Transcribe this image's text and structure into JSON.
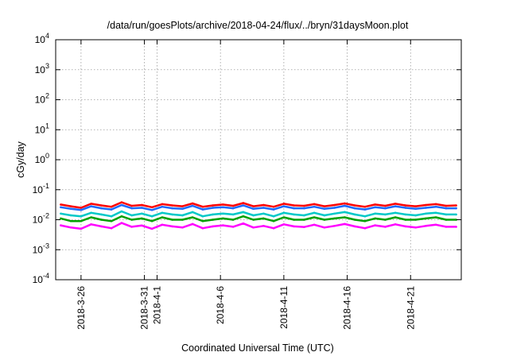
{
  "chart_data": {
    "type": "line",
    "title": "/data/run/goesPlots/archive/2018-04-24/flux/../bryn/31daysMoon.plot",
    "xlabel": "Coordinated Universal Time (UTC)",
    "ylabel": "cGy/day",
    "y_scale": "log",
    "ylim": [
      0.0001,
      10000
    ],
    "xlim": [
      "2018-03-24",
      "2018-04-25"
    ],
    "grid": true,
    "legend": "none",
    "y_ticks": [
      {
        "base": "10",
        "exp": "-4"
      },
      {
        "base": "10",
        "exp": "-3"
      },
      {
        "base": "10",
        "exp": "-2"
      },
      {
        "base": "10",
        "exp": "-1"
      },
      {
        "base": "10",
        "exp": "0"
      },
      {
        "base": "10",
        "exp": "1"
      },
      {
        "base": "10",
        "exp": "2"
      },
      {
        "base": "10",
        "exp": "3"
      },
      {
        "base": "10",
        "exp": "4"
      }
    ],
    "x_ticks": [
      {
        "date": "2018-03-26",
        "label": "2018-3-26"
      },
      {
        "date": "2018-03-31",
        "label": "2018-3-31"
      },
      {
        "date": "2018-04-01",
        "label": "2018-4-1"
      },
      {
        "date": "2018-04-06",
        "label": "2018-4-6"
      },
      {
        "date": "2018-04-11",
        "label": "2018-4-11"
      },
      {
        "date": "2018-04-16",
        "label": "2018-4-16"
      },
      {
        "date": "2018-04-21",
        "label": "2018-4-21"
      }
    ],
    "series": [
      {
        "color": "#ff0000",
        "values": [
          0.032,
          0.028,
          0.025,
          0.034,
          0.03,
          0.027,
          0.038,
          0.029,
          0.031,
          0.026,
          0.033,
          0.03,
          0.028,
          0.035,
          0.027,
          0.03,
          0.032,
          0.029,
          0.036,
          0.028,
          0.031,
          0.027,
          0.034,
          0.03,
          0.029,
          0.033,
          0.028,
          0.031,
          0.035,
          0.03,
          0.027,
          0.032,
          0.029,
          0.034,
          0.03,
          0.028,
          0.031,
          0.033,
          0.029,
          0.03
        ]
      },
      {
        "color": "#1e6bff",
        "values": [
          0.026,
          0.023,
          0.021,
          0.028,
          0.024,
          0.022,
          0.031,
          0.024,
          0.025,
          0.021,
          0.027,
          0.024,
          0.023,
          0.029,
          0.022,
          0.025,
          0.026,
          0.024,
          0.03,
          0.023,
          0.025,
          0.022,
          0.028,
          0.024,
          0.024,
          0.027,
          0.023,
          0.025,
          0.029,
          0.024,
          0.022,
          0.026,
          0.024,
          0.028,
          0.025,
          0.023,
          0.025,
          0.027,
          0.024,
          0.024
        ]
      },
      {
        "color": "#00c8c8",
        "values": [
          0.016,
          0.014,
          0.013,
          0.017,
          0.015,
          0.013,
          0.019,
          0.014,
          0.016,
          0.013,
          0.017,
          0.015,
          0.014,
          0.018,
          0.013,
          0.015,
          0.016,
          0.015,
          0.018,
          0.014,
          0.016,
          0.013,
          0.017,
          0.015,
          0.014,
          0.017,
          0.014,
          0.016,
          0.018,
          0.015,
          0.013,
          0.016,
          0.015,
          0.017,
          0.015,
          0.014,
          0.016,
          0.017,
          0.015,
          0.015
        ]
      },
      {
        "color": "#00a000",
        "values": [
          0.011,
          0.009,
          0.009,
          0.012,
          0.01,
          0.009,
          0.013,
          0.01,
          0.011,
          0.009,
          0.012,
          0.01,
          0.01,
          0.012,
          0.009,
          0.01,
          0.011,
          0.01,
          0.013,
          0.01,
          0.011,
          0.009,
          0.012,
          0.01,
          0.01,
          0.012,
          0.01,
          0.011,
          0.012,
          0.01,
          0.009,
          0.011,
          0.01,
          0.012,
          0.01,
          0.01,
          0.011,
          0.012,
          0.01,
          0.01
        ]
      },
      {
        "color": "#ff00ff",
        "values": [
          0.0065,
          0.0055,
          0.005,
          0.007,
          0.006,
          0.0052,
          0.0078,
          0.0058,
          0.0064,
          0.005,
          0.0068,
          0.006,
          0.0055,
          0.0072,
          0.0052,
          0.006,
          0.0065,
          0.0058,
          0.0075,
          0.0055,
          0.0062,
          0.0052,
          0.007,
          0.006,
          0.0057,
          0.0068,
          0.0055,
          0.0062,
          0.0072,
          0.006,
          0.0052,
          0.0065,
          0.0058,
          0.007,
          0.006,
          0.0055,
          0.0062,
          0.0068,
          0.0058,
          0.0058
        ]
      }
    ]
  }
}
